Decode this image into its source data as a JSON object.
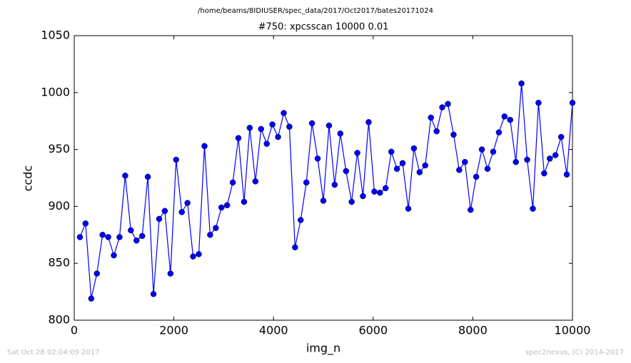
{
  "chart_data": {
    "type": "line",
    "suptitle": "/home/beams/8IDIUSER/spec_data/2017/Oct2017/bates20171024",
    "title": "#750: xpcsscan 10000 0.01",
    "x_label": "img_n",
    "y_label": "ccdc",
    "footer_left": "Sat Oct 28 02:04:09 2017",
    "footer_right": "spec2nexus, (C) 2014-2017",
    "x": [
      114,
      227,
      341,
      455,
      568,
      682,
      795,
      909,
      1023,
      1136,
      1250,
      1364,
      1477,
      1591,
      1705,
      1818,
      1932,
      2045,
      2159,
      2273,
      2386,
      2500,
      2614,
      2727,
      2841,
      2955,
      3068,
      3182,
      3295,
      3409,
      3523,
      3636,
      3750,
      3864,
      3977,
      4091,
      4205,
      4318,
      4432,
      4545,
      4659,
      4773,
      4886,
      5000,
      5114,
      5227,
      5341,
      5455,
      5568,
      5682,
      5795,
      5909,
      6023,
      6136,
      6250,
      6364,
      6477,
      6591,
      6705,
      6818,
      6932,
      7045,
      7159,
      7273,
      7386,
      7500,
      7614,
      7727,
      7841,
      7955,
      8068,
      8182,
      8295,
      8409,
      8523,
      8636,
      8750,
      8864,
      8977,
      9091,
      9205,
      9318,
      9432,
      9545,
      9659,
      9773,
      9886,
      10000
    ],
    "series": [
      {
        "name": "ccdc",
        "color": "#0000ff",
        "values": [
          873,
          885,
          819,
          841,
          875,
          873,
          857,
          873,
          927,
          879,
          870,
          874,
          926,
          823,
          889,
          896,
          841,
          941,
          895,
          903,
          856,
          858,
          953,
          875,
          881,
          899,
          901,
          921,
          960,
          904,
          969,
          922,
          968,
          955,
          972,
          961,
          982,
          970,
          864,
          888,
          921,
          973,
          942,
          905,
          971,
          919,
          964,
          931,
          904,
          947,
          909,
          974,
          913,
          912,
          916,
          948,
          933,
          938,
          898,
          951,
          930,
          936,
          978,
          966,
          987,
          990,
          963,
          932,
          939,
          897,
          926,
          950,
          933,
          948,
          965,
          979,
          976,
          939,
          1008,
          941,
          898,
          991,
          929,
          942,
          945,
          961,
          928,
          991
        ]
      }
    ],
    "xlim": [
      0,
      10000
    ],
    "ylim": [
      800,
      1050
    ],
    "xticks": [
      0,
      2000,
      4000,
      6000,
      8000,
      10000
    ],
    "yticks": [
      800,
      850,
      900,
      950,
      1000,
      1050
    ]
  }
}
